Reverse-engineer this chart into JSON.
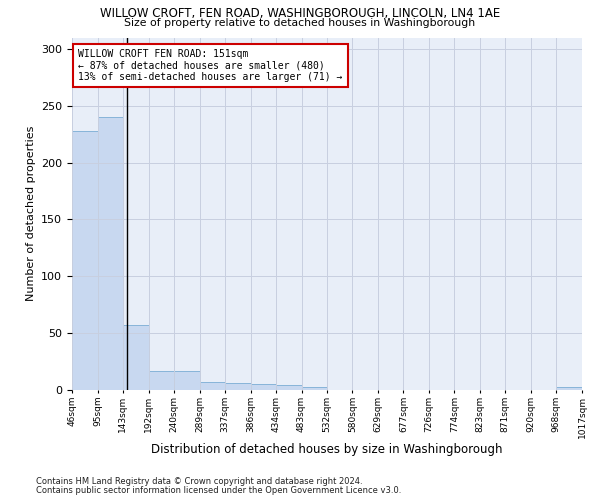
{
  "title": "WILLOW CROFT, FEN ROAD, WASHINGBOROUGH, LINCOLN, LN4 1AE",
  "subtitle": "Size of property relative to detached houses in Washingborough",
  "xlabel": "Distribution of detached houses by size in Washingborough",
  "ylabel": "Number of detached properties",
  "bar_color": "#c8d8f0",
  "bar_edge_color": "#7aadd4",
  "property_line_x": 151,
  "bin_edges": [
    46,
    95,
    143,
    192,
    240,
    289,
    337,
    386,
    434,
    483,
    532,
    580,
    629,
    677,
    726,
    774,
    823,
    871,
    920,
    968,
    1017
  ],
  "bar_heights": [
    228,
    240,
    57,
    17,
    17,
    7,
    6,
    5,
    4,
    3,
    0,
    0,
    0,
    0,
    0,
    0,
    0,
    0,
    0,
    3
  ],
  "annotation_lines": [
    "WILLOW CROFT FEN ROAD: 151sqm",
    "← 87% of detached houses are smaller (480)",
    "13% of semi-detached houses are larger (71) →"
  ],
  "annotation_box_color": "#ffffff",
  "annotation_box_edge": "#cc0000",
  "footnote1": "Contains HM Land Registry data © Crown copyright and database right 2024.",
  "footnote2": "Contains public sector information licensed under the Open Government Licence v3.0.",
  "ylim": [
    0,
    310
  ],
  "yticks": [
    0,
    50,
    100,
    150,
    200,
    250,
    300
  ],
  "grid_color": "#c8cfe0",
  "bg_color": "#e8eef8"
}
